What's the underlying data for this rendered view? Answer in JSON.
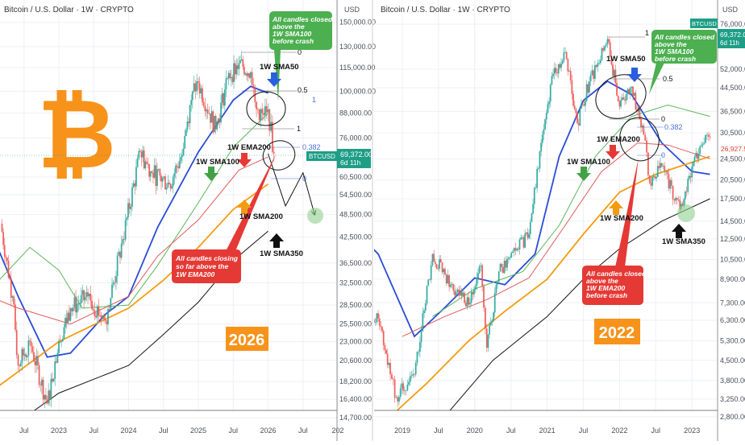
{
  "chart_data": [
    {
      "type": "candlestick",
      "title": "Bitcoin / U.S. Dollar · 1W · CRYPTO",
      "axis_unit": "USD",
      "y_scale": "log",
      "ylim": [
        14000,
        160000
      ],
      "grid": true,
      "y_ticks": [
        "150,000.00",
        "130,000.00",
        "115,000.00",
        "100,000.00",
        "88,000.00",
        "76,000.00",
        "60,500.00",
        "54,500.00",
        "48,500.00",
        "42,500.00",
        "36,500.00",
        "32,500.00",
        "28,500.00",
        "25,500.00",
        "23,000.00",
        "20,600.00",
        "18,200.00",
        "16,400.00",
        "14,700.00"
      ],
      "x_ticks": [
        "Jul",
        "2023",
        "Jul",
        "2024",
        "Jul",
        "2025",
        "Jul",
        "2026",
        "Jul",
        "202"
      ],
      "price_path": [
        [
          "2022-03",
          46000
        ],
        [
          "2022-05",
          30000
        ],
        [
          "2022-06",
          20000
        ],
        [
          "2022-08",
          23000
        ],
        [
          "2022-11",
          16000
        ],
        [
          "2023-01",
          23000
        ],
        [
          "2023-03",
          28000
        ],
        [
          "2023-06",
          30000
        ],
        [
          "2023-09",
          26000
        ],
        [
          "2023-12",
          42000
        ],
        [
          "2024-03",
          70000
        ],
        [
          "2024-05",
          62000
        ],
        [
          "2024-08",
          58000
        ],
        [
          "2024-10",
          68000
        ],
        [
          "2024-12",
          100000
        ],
        [
          "2025-01",
          105000
        ],
        [
          "2025-04",
          80000
        ],
        [
          "2025-06",
          108000
        ],
        [
          "2025-08",
          118000
        ],
        [
          "2025-10",
          112000
        ],
        [
          "2025-11",
          90000
        ],
        [
          "2025-12",
          88000
        ],
        [
          "2026-01",
          90000
        ],
        [
          "2026-02",
          69372
        ]
      ],
      "series": [
        {
          "name": "1W SMA50",
          "color": "#2a4bd7",
          "points": [
            [
              "2022-01",
              45000
            ],
            [
              "2022-06",
              30000
            ],
            [
              "2022-11",
              21000
            ],
            [
              "2023-03",
              21500
            ],
            [
              "2023-09",
              27000
            ],
            [
              "2024-01",
              30000
            ],
            [
              "2024-06",
              45000
            ],
            [
              "2025-01",
              70000
            ],
            [
              "2025-07",
              95000
            ],
            [
              "2025-10",
              103000
            ],
            [
              "2026-01",
              99000
            ]
          ]
        },
        {
          "name": "1W SMA100",
          "color": "#5cb85c",
          "points": [
            [
              "2022-01",
              31000
            ],
            [
              "2022-08",
              40000
            ],
            [
              "2023-01",
              35000
            ],
            [
              "2023-05",
              28000
            ],
            [
              "2024-01",
              28500
            ],
            [
              "2024-06",
              36000
            ],
            [
              "2025-01",
              52000
            ],
            [
              "2025-07",
              72000
            ],
            [
              "2026-01",
              88000
            ]
          ]
        },
        {
          "name": "1W EMA200",
          "color": "#e05a5a",
          "points": [
            [
              "2022-01",
              30000
            ],
            [
              "2022-06",
              28000
            ],
            [
              "2023-03",
              25500
            ],
            [
              "2024-01",
              30000
            ],
            [
              "2024-06",
              38000
            ],
            [
              "2025-01",
              47000
            ],
            [
              "2025-08",
              63000
            ],
            [
              "2026-01",
              68000
            ]
          ]
        },
        {
          "name": "1W SMA200",
          "color": "#f39c12",
          "points": [
            [
              "2022-01",
              17000
            ],
            [
              "2023-01",
              23000
            ],
            [
              "2024-01",
              28000
            ],
            [
              "2024-07",
              33000
            ],
            [
              "2025-01",
              40000
            ],
            [
              "2025-07",
              50000
            ],
            [
              "2026-01",
              58000
            ]
          ]
        },
        {
          "name": "1W SMA350",
          "color": "#111111",
          "points": [
            [
              "2022-07",
              14700
            ],
            [
              "2023-01",
              17000
            ],
            [
              "2024-01",
              20000
            ],
            [
              "2024-07",
              24000
            ],
            [
              "2025-01",
              29000
            ],
            [
              "2025-07",
              37000
            ],
            [
              "2026-01",
              44000
            ]
          ]
        }
      ],
      "projection": [
        [
          "2026-01",
          69372
        ],
        [
          "2026-04",
          51000
        ],
        [
          "2026-07",
          62000
        ],
        [
          "2026-09",
          48500
        ]
      ],
      "current_price_label": {
        "symbol": "BTCUSD",
        "price": "69,372.00",
        "countdown": "6d 11h"
      },
      "fib_levels": [
        "0",
        "0.5",
        "1",
        "1",
        "0.382",
        "0"
      ],
      "annotations": {
        "sma50": "1W SMA50",
        "sma100": "1W SMA100",
        "ema200": "1W EMA200",
        "sma200": "1W SMA200",
        "sma350": "1W SMA350",
        "green_callout": [
          "All candles closed",
          "above the",
          "1W SMA100",
          "before crash"
        ],
        "red_callout": [
          "All candles closing",
          "so far above the",
          "1W EMA200"
        ],
        "year_badge": "2026"
      }
    },
    {
      "type": "candlestick",
      "title": "Bitcoin / U.S. Dollar · 1W · CRYPTO",
      "axis_unit": "USD",
      "y_scale": "log",
      "ylim": [
        2700,
        80000
      ],
      "grid": true,
      "y_ticks": [
        "76,000.00",
        "52,000.00",
        "44,500.00",
        "36,500.00",
        "30,500.00",
        "24,500.00",
        "20,500.00",
        "17,500.00",
        "14,500.00",
        "12,500.00",
        "10,500.00",
        "8,900.00",
        "7,300.00",
        "6,300.00",
        "5,300.00",
        "4,500.00",
        "3,800.00",
        "3,250.00",
        "2,800.00"
      ],
      "x_ticks": [
        "2019",
        "Jul",
        "2020",
        "Jul",
        "2021",
        "Jul",
        "2022",
        "Jul",
        "2023"
      ],
      "price_path": [
        [
          "2018-06",
          6500
        ],
        [
          "2018-09",
          6400
        ],
        [
          "2018-11",
          4000
        ],
        [
          "2018-12",
          3300
        ],
        [
          "2019-03",
          4000
        ],
        [
          "2019-06",
          11000
        ],
        [
          "2019-09",
          8500
        ],
        [
          "2019-12",
          7200
        ],
        [
          "2020-02",
          10000
        ],
        [
          "2020-03",
          5000
        ],
        [
          "2020-05",
          9500
        ],
        [
          "2020-08",
          11500
        ],
        [
          "2020-10",
          13000
        ],
        [
          "2020-12",
          28000
        ],
        [
          "2021-02",
          50000
        ],
        [
          "2021-04",
          60000
        ],
        [
          "2021-06",
          33000
        ],
        [
          "2021-08",
          47000
        ],
        [
          "2021-11",
          67000
        ],
        [
          "2022-01",
          38000
        ],
        [
          "2022-03",
          45000
        ],
        [
          "2022-05",
          30000
        ],
        [
          "2022-06",
          20000
        ],
        [
          "2022-08",
          23000
        ],
        [
          "2022-11",
          16000
        ],
        [
          "2023-01",
          23000
        ],
        [
          "2023-03",
          28000
        ],
        [
          "2023-04",
          29500
        ]
      ],
      "series": [
        {
          "name": "1W SMA50",
          "color": "#2a4bd7",
          "points": [
            [
              "2018-05",
              13500
            ],
            [
              "2018-09",
              11000
            ],
            [
              "2019-03",
              5500
            ],
            [
              "2019-08",
              7000
            ],
            [
              "2020-01",
              9000
            ],
            [
              "2020-06",
              8500
            ],
            [
              "2020-11",
              11000
            ],
            [
              "2021-03",
              25000
            ],
            [
              "2021-07",
              40000
            ],
            [
              "2021-11",
              47000
            ],
            [
              "2022-03",
              42000
            ],
            [
              "2022-08",
              28000
            ],
            [
              "2023-01",
              22000
            ],
            [
              "2023-04",
              21500
            ]
          ]
        },
        {
          "name": "1W SMA100",
          "color": "#5cb85c",
          "points": [
            [
              "2019-06",
              6500
            ],
            [
              "2020-01",
              8200
            ],
            [
              "2020-09",
              9500
            ],
            [
              "2021-03",
              14000
            ],
            [
              "2021-09",
              25000
            ],
            [
              "2022-03",
              35000
            ],
            [
              "2022-09",
              38500
            ],
            [
              "2023-04",
              35000
            ]
          ]
        },
        {
          "name": "1W EMA200",
          "color": "#e05a5a",
          "points": [
            [
              "2019-01",
              5500
            ],
            [
              "2019-08",
              6500
            ],
            [
              "2020-03",
              7500
            ],
            [
              "2020-10",
              9000
            ],
            [
              "2021-04",
              14000
            ],
            [
              "2021-10",
              22000
            ],
            [
              "2022-04",
              28000
            ],
            [
              "2022-09",
              27500
            ],
            [
              "2023-04",
              24500
            ]
          ]
        },
        {
          "name": "1W SMA200",
          "color": "#f39c12",
          "points": [
            [
              "2018-11",
              2800
            ],
            [
              "2019-05",
              3700
            ],
            [
              "2019-12",
              5300
            ],
            [
              "2020-06",
              6800
            ],
            [
              "2021-01",
              8900
            ],
            [
              "2021-07",
              13000
            ],
            [
              "2022-01",
              18500
            ],
            [
              "2022-07",
              21500
            ],
            [
              "2023-04",
              25000
            ]
          ]
        },
        {
          "name": "1W SMA350",
          "color": "#111111",
          "points": [
            [
              "2019-08",
              2800
            ],
            [
              "2020-04",
              4500
            ],
            [
              "2021-01",
              6500
            ],
            [
              "2021-07",
              8900
            ],
            [
              "2022-01",
              11500
            ],
            [
              "2022-08",
              14500
            ],
            [
              "2023-04",
              17500
            ]
          ]
        }
      ],
      "current_price_label": {
        "symbol": "BTCUSD",
        "price": "69,372.00",
        "countdown": "6d 11h"
      },
      "secondary_price_label": "26,927.5",
      "fib_levels": [
        "1",
        "0.5",
        "0",
        "0.382",
        "0"
      ],
      "annotations": {
        "sma50": "1W SMA50",
        "sma100": "1W SMA100",
        "ema200": "1W EMA200",
        "sma200": "1W SMA200",
        "sma350": "1W SMA350",
        "green_callout": [
          "All candles closed",
          "above the",
          "1W SMA100",
          "before crash"
        ],
        "red_callout": [
          "All candles closed",
          "above the",
          "1W EMA200",
          "before crash"
        ],
        "year_badge": "2022"
      }
    }
  ],
  "colors": {
    "up": "#26a69a",
    "down": "#ef5350",
    "accent_green": "#4caf50",
    "accent_red": "#e53935",
    "badge_orange": "#f7931a",
    "price_label": "#1e9e86"
  }
}
